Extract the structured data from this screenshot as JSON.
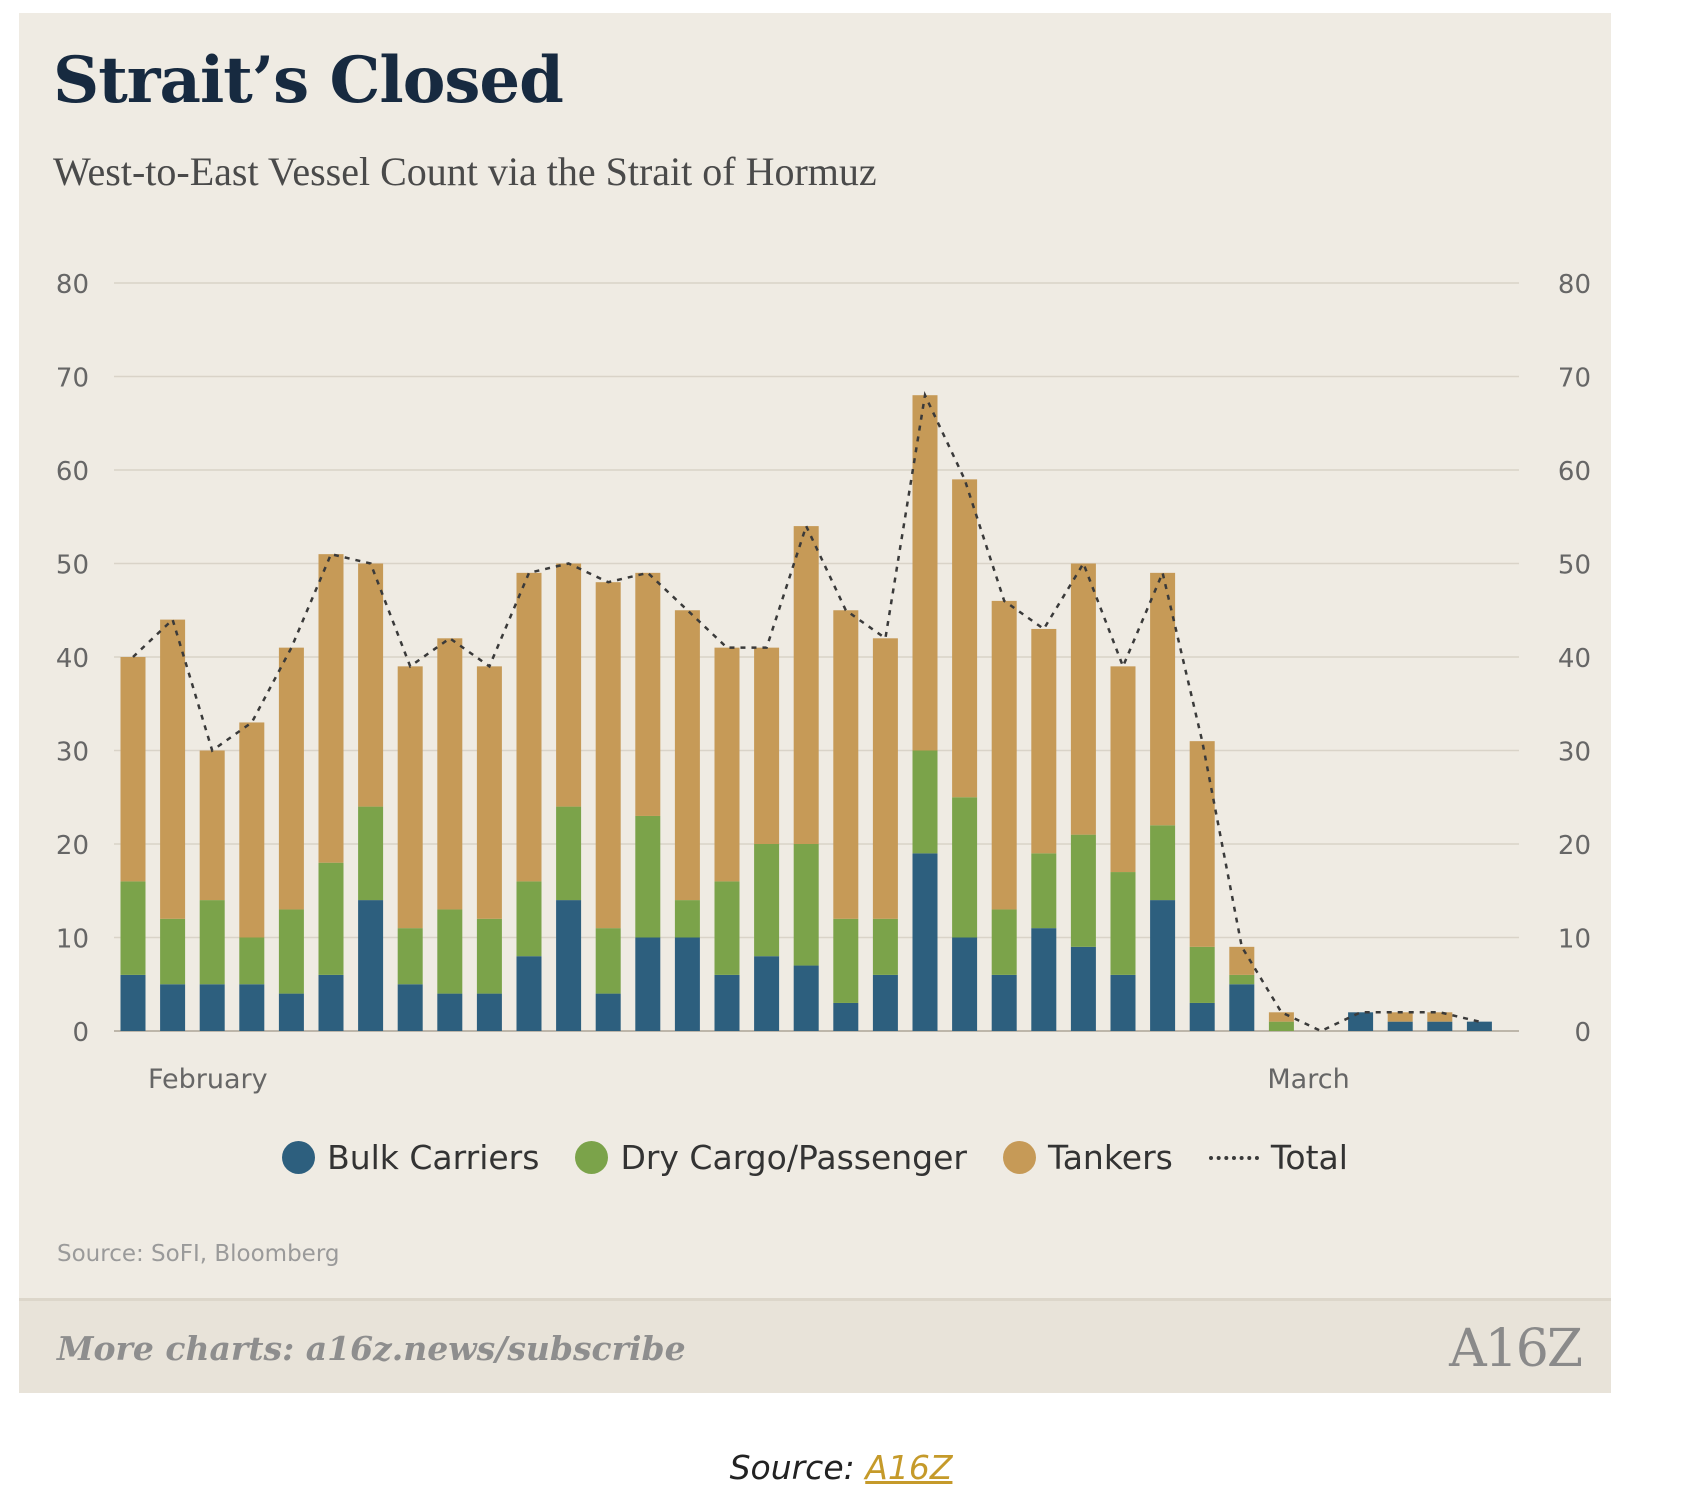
{
  "card": {
    "title": "Strait’s Closed",
    "subtitle": "West-to-East Vessel Count via the Strait of Hormuz",
    "note": "Source: SoFI, Bloomberg",
    "footer_text": "More charts: a16z.news/subscribe",
    "logo_text": "A16Z"
  },
  "caption": {
    "prefix": "Source: ",
    "link_label": "A16Z"
  },
  "colors": {
    "bulk": "#2d5f7e",
    "dry": "#7ba34a",
    "tankers": "#c69a57",
    "total": "#3a3a3a",
    "grid": "#d9d3c8",
    "axis_text": "#666666",
    "background": "#efebe3"
  },
  "chart_data": {
    "type": "bar",
    "stacked": true,
    "x_labels": [
      {
        "index": 0,
        "label": "February"
      },
      {
        "index": 29,
        "label": "March"
      }
    ],
    "y_ticks": [
      0,
      10,
      20,
      30,
      40,
      50,
      60,
      70,
      80
    ],
    "ylim": [
      0,
      80
    ],
    "y_axis_both_sides": true,
    "grid": true,
    "legend_position": "bottom",
    "series": [
      {
        "name": "Bulk Carriers",
        "values": [
          6,
          5,
          5,
          5,
          4,
          6,
          14,
          5,
          4,
          4,
          8,
          14,
          4,
          10,
          10,
          6,
          8,
          7,
          3,
          6,
          19,
          10,
          6,
          11,
          9,
          6,
          14,
          3,
          5,
          0,
          0,
          2,
          1,
          1,
          1
        ]
      },
      {
        "name": "Dry Cargo/Passenger",
        "values": [
          10,
          7,
          9,
          5,
          9,
          12,
          10,
          6,
          9,
          8,
          8,
          10,
          7,
          13,
          4,
          10,
          12,
          13,
          9,
          6,
          11,
          15,
          7,
          8,
          12,
          11,
          8,
          6,
          1,
          1,
          0,
          0,
          0,
          0,
          0
        ]
      },
      {
        "name": "Tankers",
        "values": [
          24,
          32,
          16,
          23,
          28,
          33,
          26,
          28,
          29,
          27,
          33,
          26,
          37,
          26,
          31,
          25,
          21,
          34,
          33,
          30,
          38,
          34,
          33,
          24,
          29,
          22,
          27,
          22,
          3,
          1,
          0,
          0,
          1,
          1,
          0
        ]
      }
    ],
    "total": {
      "name": "Total",
      "values": [
        40,
        44,
        30,
        33,
        41,
        51,
        50,
        39,
        42,
        39,
        49,
        50,
        48,
        49,
        45,
        41,
        41,
        54,
        45,
        42,
        68,
        59,
        46,
        43,
        50,
        39,
        49,
        31,
        9,
        2,
        0,
        2,
        2,
        2,
        1
      ]
    }
  },
  "legend": [
    {
      "label": "Bulk Carriers",
      "key": "bulk"
    },
    {
      "label": "Dry Cargo/Passenger",
      "key": "dry"
    },
    {
      "label": "Tankers",
      "key": "tankers"
    },
    {
      "label": "Total",
      "key": "total"
    }
  ]
}
